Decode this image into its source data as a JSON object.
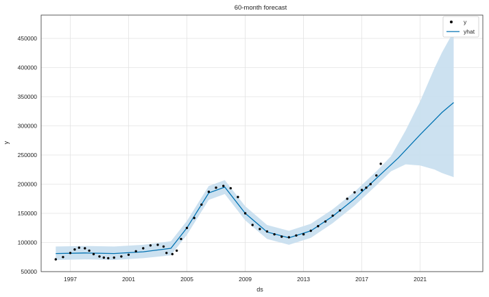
{
  "chart_data": {
    "type": "line",
    "title": "60-month forecast",
    "xlabel": "ds",
    "ylabel": "y",
    "xlim": [
      1995.0,
      2025.3
    ],
    "ylim": [
      50000,
      490000
    ],
    "grid": true,
    "legend_position": "top-right",
    "x_ticks": [
      1997,
      2001,
      2005,
      2009,
      2013,
      2017,
      2021
    ],
    "y_ticks": [
      50000,
      100000,
      150000,
      200000,
      250000,
      300000,
      350000,
      400000,
      450000
    ],
    "x_tick_labels": [
      "1997",
      "2001",
      "2005",
      "2009",
      "2013",
      "2017",
      "2021"
    ],
    "y_tick_labels": [
      "50000",
      "100000",
      "150000",
      "200000",
      "250000",
      "300000",
      "350000",
      "400000",
      "450000"
    ],
    "colors": {
      "observed": "#000000",
      "forecast": "#0072B2",
      "band": "#C6DEEE",
      "grid": "#e3e3e3"
    },
    "series": [
      {
        "name": "y",
        "kind": "scatter",
        "x": [
          1996.0,
          1996.5,
          1997.0,
          1997.3,
          1997.6,
          1998.0,
          1998.3,
          1998.6,
          1999.0,
          1999.3,
          1999.6,
          2000.0,
          2000.5,
          2001.0,
          2001.5,
          2002.0,
          2002.5,
          2003.0,
          2003.4,
          2003.6,
          2004.0,
          2004.3,
          2004.6,
          2005.0,
          2005.5,
          2006.0,
          2006.5,
          2007.0,
          2007.5,
          2008.0,
          2008.5,
          2009.0,
          2009.5,
          2010.0,
          2010.5,
          2011.0,
          2011.5,
          2012.0,
          2012.5,
          2013.0,
          2013.5,
          2014.0,
          2014.5,
          2015.0,
          2015.5,
          2016.0,
          2016.5,
          2017.0,
          2017.3,
          2017.6,
          2018.0,
          2018.3
        ],
        "y": [
          71000,
          75000,
          82000,
          88000,
          91000,
          90000,
          86000,
          80000,
          76000,
          74000,
          73000,
          74000,
          76000,
          79000,
          85000,
          90000,
          95000,
          96000,
          93000,
          82000,
          80000,
          86000,
          106000,
          125000,
          142000,
          165000,
          187000,
          194000,
          197000,
          193000,
          178000,
          150000,
          130000,
          123000,
          119000,
          114000,
          110000,
          109000,
          112000,
          114000,
          120000,
          128000,
          136000,
          146000,
          155000,
          175000,
          186000,
          190000,
          194000,
          200000,
          215000,
          235000
        ]
      },
      {
        "name": "yhat",
        "kind": "line",
        "x": [
          1996.0,
          1998.0,
          2000.0,
          2002.0,
          2003.9,
          2005.0,
          2006.5,
          2007.6,
          2009.0,
          2010.5,
          2012.0,
          2013.5,
          2015.0,
          2016.5,
          2018.0,
          2019.5,
          2021.0,
          2022.5,
          2023.3
        ],
        "y": [
          81000,
          82000,
          81000,
          84000,
          90000,
          125000,
          185000,
          195000,
          150000,
          118000,
          108000,
          120000,
          145000,
          175000,
          210000,
          245000,
          285000,
          323000,
          340000
        ]
      }
    ],
    "uncertainty_band": {
      "x": [
        1996.0,
        1998.0,
        2000.0,
        2002.0,
        2003.9,
        2005.0,
        2006.5,
        2007.6,
        2009.0,
        2010.5,
        2012.0,
        2013.5,
        2015.0,
        2016.5,
        2018.0,
        2019.0,
        2020.0,
        2021.0,
        2022.0,
        2022.5,
        2023.3
      ],
      "lower": [
        70000,
        71000,
        70000,
        73000,
        78000,
        113000,
        173000,
        183000,
        138000,
        106000,
        96000,
        108000,
        133000,
        163000,
        198000,
        222000,
        234000,
        232000,
        225000,
        219000,
        212000
      ],
      "upper": [
        93000,
        94000,
        93000,
        96000,
        102000,
        137000,
        197000,
        207000,
        162000,
        130000,
        120000,
        132000,
        157000,
        187000,
        222000,
        248000,
        292000,
        342000,
        400000,
        426000,
        462000
      ]
    }
  }
}
